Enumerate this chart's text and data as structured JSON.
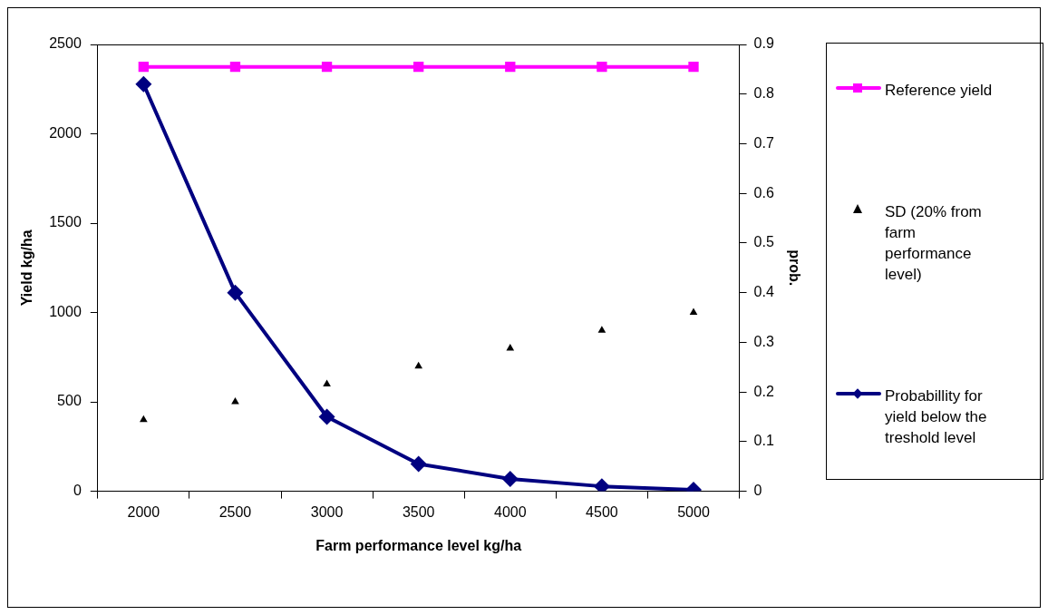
{
  "chart_data": {
    "type": "line",
    "xlabel": "Farm performance level kg/ha",
    "ylabel": "Yield kg/ha",
    "y2label": "prob.",
    "categories": [
      "2000",
      "2500",
      "3000",
      "3500",
      "4000",
      "4500",
      "5000"
    ],
    "series": [
      {
        "name": "Reference yield",
        "color": "#ff00ff",
        "marker": "square",
        "values": [
          2375,
          2375,
          2375,
          2375,
          2375,
          2375,
          2375
        ]
      },
      {
        "name": "SD (20% from farm performance level)",
        "type": "scatter",
        "color": "#000000",
        "marker": "triangle",
        "values": [
          400,
          500,
          600,
          700,
          800,
          900,
          1000
        ]
      },
      {
        "name": "Probabillity for yield below the treshold level",
        "axis": "y2",
        "color": "#000080",
        "marker": "diamond",
        "values": [
          0.82,
          0.4,
          0.15,
          0.055,
          0.025,
          0.01,
          0.003
        ]
      }
    ],
    "ylim": [
      0,
      2500
    ],
    "yticks": [
      0,
      500,
      1000,
      1500,
      2000,
      2500
    ],
    "y2lim": [
      0,
      0.9
    ],
    "y2ticks": [
      0,
      0.1,
      0.2,
      0.3,
      0.4,
      0.5,
      0.6,
      0.7,
      0.8,
      0.9
    ],
    "grid": false,
    "legend": "right"
  }
}
